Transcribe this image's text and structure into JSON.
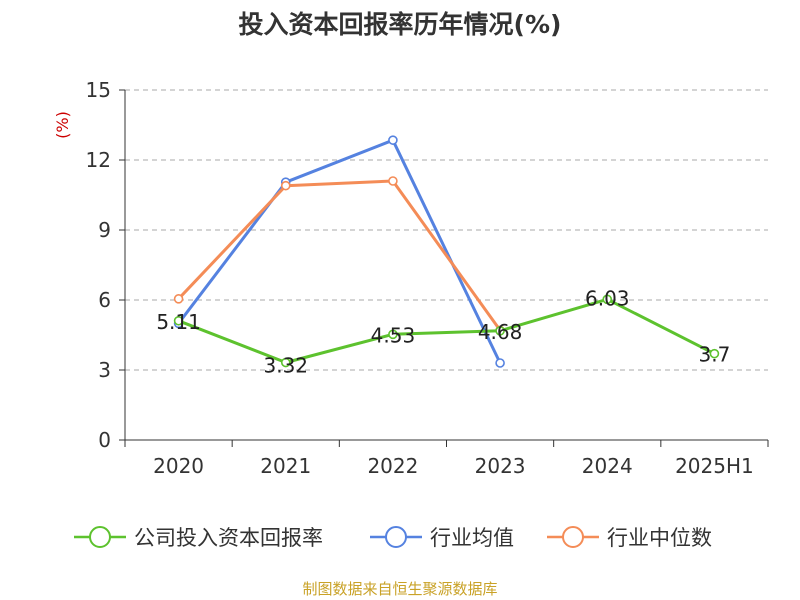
{
  "chart_data": {
    "type": "line",
    "title": "投入资本回报率历年情况(%)",
    "ylabel": "(%)",
    "xlabel": "",
    "categories": [
      "2020",
      "2021",
      "2022",
      "2023",
      "2024",
      "2025H1"
    ],
    "yticks": [
      "0",
      "3",
      "6",
      "9",
      "12",
      "15"
    ],
    "ylim": [
      0,
      15
    ],
    "grid": true,
    "legend_position": "bottom",
    "series": [
      {
        "name": "公司投入资本回报率",
        "color": "#5dc22e",
        "values": [
          5.11,
          3.32,
          4.53,
          4.68,
          6.03,
          3.7
        ],
        "labels": [
          "5.11",
          "3.32",
          "4.53",
          "4.68",
          "6.03",
          "3.7"
        ]
      },
      {
        "name": "行业均值",
        "color": "#5582e0",
        "values": [
          5.0,
          11.05,
          12.85,
          3.3,
          null,
          null
        ]
      },
      {
        "name": "行业中位数",
        "color": "#f48c57",
        "values": [
          6.05,
          10.9,
          11.1,
          4.7,
          null,
          null
        ]
      }
    ],
    "ylabel_color": "#cc0000",
    "source": "制图数据来自恒生聚源数据库",
    "source_color": "#c9a227"
  }
}
